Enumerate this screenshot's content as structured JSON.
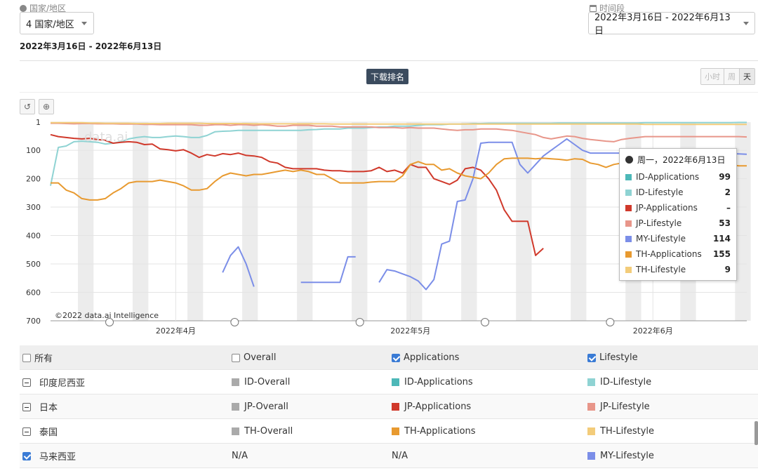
{
  "filters": {
    "country_label": "国家/地区",
    "country_value": "4 国家/地区",
    "period_label": "时间段",
    "period_value": "2022年3月16日 - 2022年6月13日",
    "range_text": "2022年3月16日 - 2022年6月13日"
  },
  "toolbar": {
    "rank_label": "下载排名",
    "granularity": [
      "小时",
      "周",
      "天"
    ]
  },
  "watermark": "data.ai",
  "copyright": "©2022 data.ai Intelligence",
  "chart_data": {
    "type": "line",
    "y_inverted": true,
    "ylim": [
      1,
      700
    ],
    "yticks": [
      1,
      100,
      200,
      300,
      400,
      500,
      600,
      700
    ],
    "xlim": [
      0,
      89
    ],
    "xticks": [
      {
        "label": "2022年4月",
        "x": 16
      },
      {
        "label": "2022年5月",
        "x": 46
      },
      {
        "label": "2022年6月",
        "x": 77
      }
    ],
    "grid": true,
    "series": [
      {
        "name": "ID-Applications",
        "color": "#4db8b8",
        "values": [
          null,
          null,
          null,
          null,
          null,
          null,
          null,
          null,
          null,
          null,
          null,
          null,
          null,
          null,
          null,
          null,
          null,
          null,
          null,
          null,
          null,
          null,
          null,
          null,
          null,
          null,
          null,
          null,
          null,
          null,
          null,
          null,
          null,
          null,
          null,
          null,
          null,
          null,
          null,
          null,
          null,
          null,
          null,
          null,
          null,
          null,
          null,
          null,
          null,
          null,
          null,
          null,
          null,
          null,
          null,
          null,
          null,
          null,
          null,
          null,
          null,
          null,
          null,
          null,
          null,
          null,
          null,
          null,
          null,
          null,
          null,
          null,
          null,
          null,
          null,
          null,
          180,
          110,
          null,
          null,
          null,
          null,
          null,
          null,
          null,
          null,
          null,
          null,
          null,
          99
        ]
      },
      {
        "name": "ID-Lifestyle",
        "color": "#8fd3d3",
        "values": [
          225,
          90,
          85,
          70,
          68,
          70,
          72,
          78,
          75,
          70,
          60,
          55,
          52,
          55,
          55,
          52,
          50,
          52,
          55,
          55,
          48,
          35,
          33,
          32,
          30,
          30,
          30,
          30,
          30,
          30,
          30,
          30,
          30,
          28,
          27,
          25,
          25,
          25,
          22,
          22,
          22,
          20,
          18,
          18,
          15,
          15,
          15,
          12,
          10,
          10,
          10,
          8,
          8,
          8,
          6,
          6,
          5,
          5,
          5,
          5,
          5,
          5,
          5,
          5,
          5,
          4,
          4,
          4,
          4,
          4,
          4,
          4,
          4,
          4,
          4,
          4,
          3,
          3,
          3,
          3,
          3,
          3,
          3,
          3,
          3,
          3,
          3,
          3,
          2,
          2
        ]
      },
      {
        "name": "JP-Applications",
        "color": "#d0392b",
        "values": [
          45,
          52,
          55,
          58,
          60,
          58,
          62,
          65,
          75,
          72,
          70,
          72,
          80,
          78,
          95,
          98,
          102,
          98,
          110,
          125,
          115,
          120,
          112,
          115,
          110,
          118,
          120,
          125,
          140,
          145,
          160,
          165,
          165,
          165,
          165,
          170,
          172,
          172,
          175,
          175,
          175,
          172,
          160,
          175,
          170,
          180,
          150,
          160,
          160,
          200,
          210,
          220,
          205,
          165,
          160,
          170,
          200,
          240,
          310,
          350,
          350,
          350,
          470,
          445,
          null,
          null,
          null,
          null,
          null,
          null,
          null,
          null,
          null,
          null,
          null,
          null,
          null,
          null,
          null,
          null,
          null,
          null,
          null,
          null,
          null,
          null,
          null,
          null,
          null,
          null
        ]
      },
      {
        "name": "JP-Lifestyle",
        "color": "#e8968a",
        "values": [
          5,
          5,
          6,
          7,
          6,
          6,
          7,
          7,
          7,
          8,
          8,
          8,
          9,
          9,
          10,
          10,
          10,
          10,
          10,
          12,
          12,
          10,
          10,
          12,
          10,
          10,
          12,
          10,
          12,
          15,
          15,
          12,
          12,
          12,
          15,
          15,
          15,
          18,
          18,
          18,
          18,
          18,
          20,
          20,
          20,
          22,
          20,
          22,
          22,
          22,
          25,
          28,
          30,
          28,
          28,
          25,
          25,
          25,
          28,
          30,
          35,
          40,
          45,
          55,
          60,
          55,
          50,
          52,
          58,
          62,
          65,
          68,
          70,
          62,
          58,
          55,
          52,
          52,
          52,
          52,
          52,
          52,
          52,
          52,
          52,
          52,
          52,
          52,
          52,
          53
        ]
      },
      {
        "name": "MY-Lifestyle",
        "color": "#7b8ee8",
        "values": [
          null,
          null,
          null,
          null,
          null,
          null,
          null,
          null,
          null,
          null,
          null,
          null,
          null,
          null,
          null,
          null,
          null,
          null,
          null,
          null,
          null,
          null,
          530,
          470,
          440,
          500,
          580,
          null,
          null,
          null,
          null,
          null,
          565,
          565,
          565,
          565,
          565,
          565,
          475,
          475,
          null,
          null,
          565,
          520,
          525,
          535,
          545,
          560,
          590,
          555,
          430,
          420,
          280,
          275,
          200,
          75,
          72,
          72,
          72,
          72,
          150,
          180,
          150,
          120,
          100,
          80,
          60,
          80,
          100,
          110,
          110,
          110,
          110,
          110,
          110,
          110,
          110,
          110,
          110,
          110,
          110,
          110,
          110,
          110,
          110,
          110,
          110,
          112,
          113,
          114
        ]
      },
      {
        "name": "TH-Applications",
        "color": "#e89a30",
        "values": [
          215,
          215,
          240,
          250,
          270,
          275,
          275,
          270,
          250,
          235,
          215,
          210,
          210,
          210,
          205,
          210,
          215,
          225,
          240,
          240,
          235,
          210,
          190,
          180,
          185,
          190,
          185,
          185,
          180,
          175,
          170,
          175,
          170,
          175,
          185,
          185,
          200,
          215,
          215,
          215,
          215,
          212,
          210,
          210,
          210,
          190,
          150,
          140,
          150,
          150,
          170,
          165,
          180,
          190,
          195,
          200,
          180,
          150,
          130,
          128,
          128,
          128,
          130,
          128,
          130,
          132,
          135,
          130,
          132,
          145,
          150,
          160,
          150,
          145,
          140,
          145,
          150,
          152,
          152,
          152,
          152,
          152,
          152,
          152,
          152,
          152,
          152,
          152,
          155,
          155
        ]
      },
      {
        "name": "TH-Lifestyle",
        "color": "#f3cc7a",
        "values": [
          3,
          3,
          3,
          3,
          3,
          4,
          4,
          5,
          5,
          5,
          5,
          6,
          6,
          6,
          6,
          5,
          5,
          5,
          5,
          5,
          6,
          6,
          6,
          6,
          6,
          6,
          7,
          7,
          7,
          7,
          7,
          7,
          7,
          7,
          7,
          7,
          8,
          8,
          8,
          8,
          8,
          8,
          8,
          8,
          8,
          8,
          8,
          8,
          8,
          8,
          8,
          8,
          8,
          8,
          8,
          8,
          8,
          8,
          8,
          8,
          8,
          8,
          8,
          8,
          8,
          8,
          8,
          8,
          8,
          8,
          8,
          8,
          8,
          8,
          8,
          8,
          9,
          9,
          9,
          9,
          9,
          9,
          9,
          9,
          9,
          9,
          9,
          9,
          9,
          9
        ]
      }
    ]
  },
  "tooltip": {
    "date": "周一，2022年6月13日",
    "rows": [
      {
        "name": "ID-Applications",
        "value": "99",
        "color": "#4db8b8"
      },
      {
        "name": "ID-Lifestyle",
        "value": "2",
        "color": "#8fd3d3"
      },
      {
        "name": "JP-Applications",
        "value": "–",
        "color": "#d0392b"
      },
      {
        "name": "JP-Lifestyle",
        "value": "53",
        "color": "#e8968a"
      },
      {
        "name": "MY-Lifestyle",
        "value": "114",
        "color": "#7b8ee8"
      },
      {
        "name": "TH-Applications",
        "value": "155",
        "color": "#e89a30"
      },
      {
        "name": "TH-Lifestyle",
        "value": "9",
        "color": "#f3cc7a"
      }
    ]
  },
  "legend_table": {
    "header": {
      "all": "所有",
      "overall": "Overall",
      "applications": "Applications",
      "lifestyle": "Lifestyle"
    },
    "rows": [
      {
        "country": "印度尼西亚",
        "overall": "ID-Overall",
        "applications": "ID-Applications",
        "lifestyle": "ID-Lifestyle"
      },
      {
        "country": "日本",
        "overall": "JP-Overall",
        "applications": "JP-Applications",
        "lifestyle": "JP-Lifestyle"
      },
      {
        "country": "泰国",
        "overall": "TH-Overall",
        "applications": "TH-Applications",
        "lifestyle": "TH-Lifestyle"
      },
      {
        "country": "马来西亚",
        "overall": "N/A",
        "applications": "N/A",
        "lifestyle": "MY-Lifestyle"
      }
    ]
  }
}
